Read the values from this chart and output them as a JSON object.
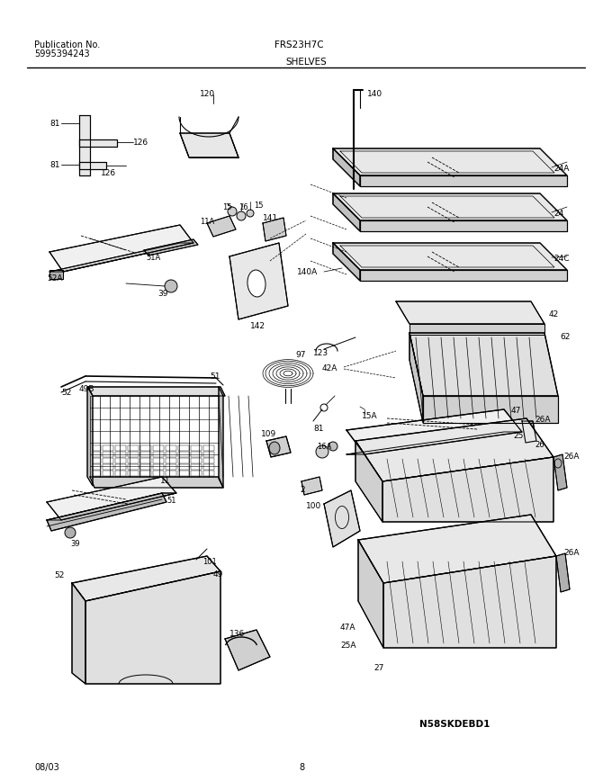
{
  "title": "FRS23H7C",
  "subtitle": "SHELVES",
  "pub_label": "Publication No.",
  "pub_number": "5995394243",
  "date": "08/03",
  "page": "8",
  "diagram_id": "N58SKDEBD1",
  "bg_color": "#ffffff",
  "line_color": "#000000",
  "text_color": "#000000",
  "fig_width": 6.8,
  "fig_height": 8.68,
  "dpi": 100
}
